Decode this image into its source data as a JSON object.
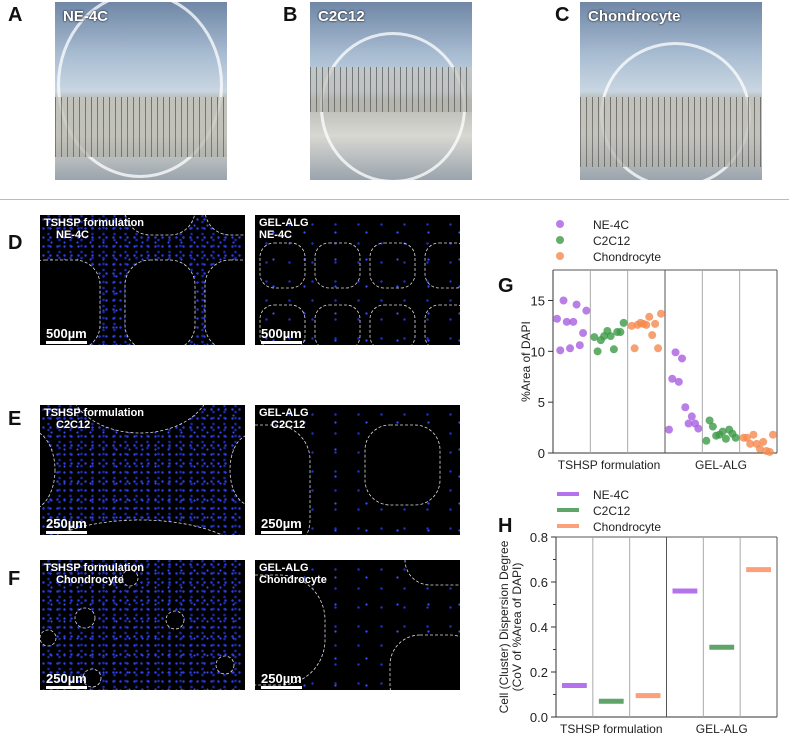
{
  "panels": {
    "A": {
      "letter": "A",
      "label": "NE-4C",
      "ruler": [
        "11",
        "12",
        "13",
        "14",
        "15"
      ]
    },
    "B": {
      "letter": "B",
      "label": "C2C12",
      "ruler": [
        "20",
        "21",
        "22",
        "23"
      ]
    },
    "C": {
      "letter": "C",
      "label": "Chondrocyte",
      "ruler": [
        "18",
        "19",
        "20",
        "21",
        "22",
        "2"
      ]
    },
    "D": {
      "letter": "D",
      "left": {
        "line1": "TSHSP formulation",
        "line2": "NE-4C",
        "scale": "500µm"
      },
      "right": {
        "line1": "GEL-ALG",
        "line2": "NE-4C",
        "scale": "500µm"
      }
    },
    "E": {
      "letter": "E",
      "left": {
        "line1": "TSHSP formulation",
        "line2": "C2C12",
        "scale": "250µm"
      },
      "right": {
        "line1": "GEL-ALG",
        "line2": "C2C12",
        "scale": "250µm"
      }
    },
    "F": {
      "letter": "F",
      "left": {
        "line1": "TSHSP formulation",
        "line2": "Chondrocyte",
        "scale": "250µm"
      },
      "right": {
        "line1": "GEL-ALG",
        "line2": "Chondrocyte",
        "scale": "250µm"
      }
    }
  },
  "chart_data": [
    {
      "panel": "G",
      "type": "scatter",
      "ylabel": "%Area of DAPI",
      "ylim": [
        0,
        18
      ],
      "yticks": [
        "0",
        "5",
        "10",
        "15"
      ],
      "groups": [
        "TSHSP formulation",
        "GEL-ALG"
      ],
      "legend": {
        "placement": "top-left"
      },
      "series": [
        {
          "name": "NE-4C",
          "color": "#a75fe0",
          "values": [
            [
              13.2,
              10.1,
              15.0,
              12.9,
              10.3,
              12.9,
              14.6,
              10.6,
              11.8,
              14.0
            ],
            [
              2.3,
              7.3,
              9.9,
              7.0,
              9.3,
              4.5,
              2.9,
              3.6,
              2.9,
              2.4
            ]
          ]
        },
        {
          "name": "C2C12",
          "color": "#3c9a46",
          "values": [
            [
              11.4,
              10.0,
              11.1,
              11.5,
              12.0,
              11.5,
              10.2,
              11.9,
              11.9,
              12.8
            ],
            [
              1.2,
              3.2,
              2.6,
              1.7,
              1.8,
              2.1,
              1.4,
              2.3,
              1.9,
              1.5
            ]
          ]
        },
        {
          "name": "Chondrocyte",
          "color": "#f58a4f",
          "values": [
            [
              12.5,
              10.3,
              12.6,
              12.8,
              12.7,
              12.6,
              13.4,
              11.6,
              12.7,
              10.3,
              13.7
            ],
            [
              1.5,
              1.5,
              0.9,
              1.8,
              0.9,
              0.4,
              1.1,
              0.2,
              0.1,
              1.8
            ]
          ]
        }
      ]
    },
    {
      "panel": "H",
      "type": "bar",
      "ylabel": "Cell (Cluster) Dispersion Degree",
      "ylabel2": "(CoV of  %Area of DAPI)",
      "ylim": [
        0,
        0.8
      ],
      "yticks": [
        "0.0",
        "0.2",
        "0.4",
        "0.6",
        "0.8"
      ],
      "groups": [
        "TSHSP formulation",
        "GEL-ALG"
      ],
      "legend": {
        "placement": "top-left"
      },
      "series": [
        {
          "name": "NE-4C",
          "color": "#b473ec",
          "values": [
            0.14,
            0.56
          ]
        },
        {
          "name": "C2C12",
          "color": "#5fa56a",
          "values": [
            0.07,
            0.31
          ]
        },
        {
          "name": "Chondrocyte",
          "color": "#fba07a",
          "values": [
            0.095,
            0.655
          ]
        }
      ]
    }
  ]
}
